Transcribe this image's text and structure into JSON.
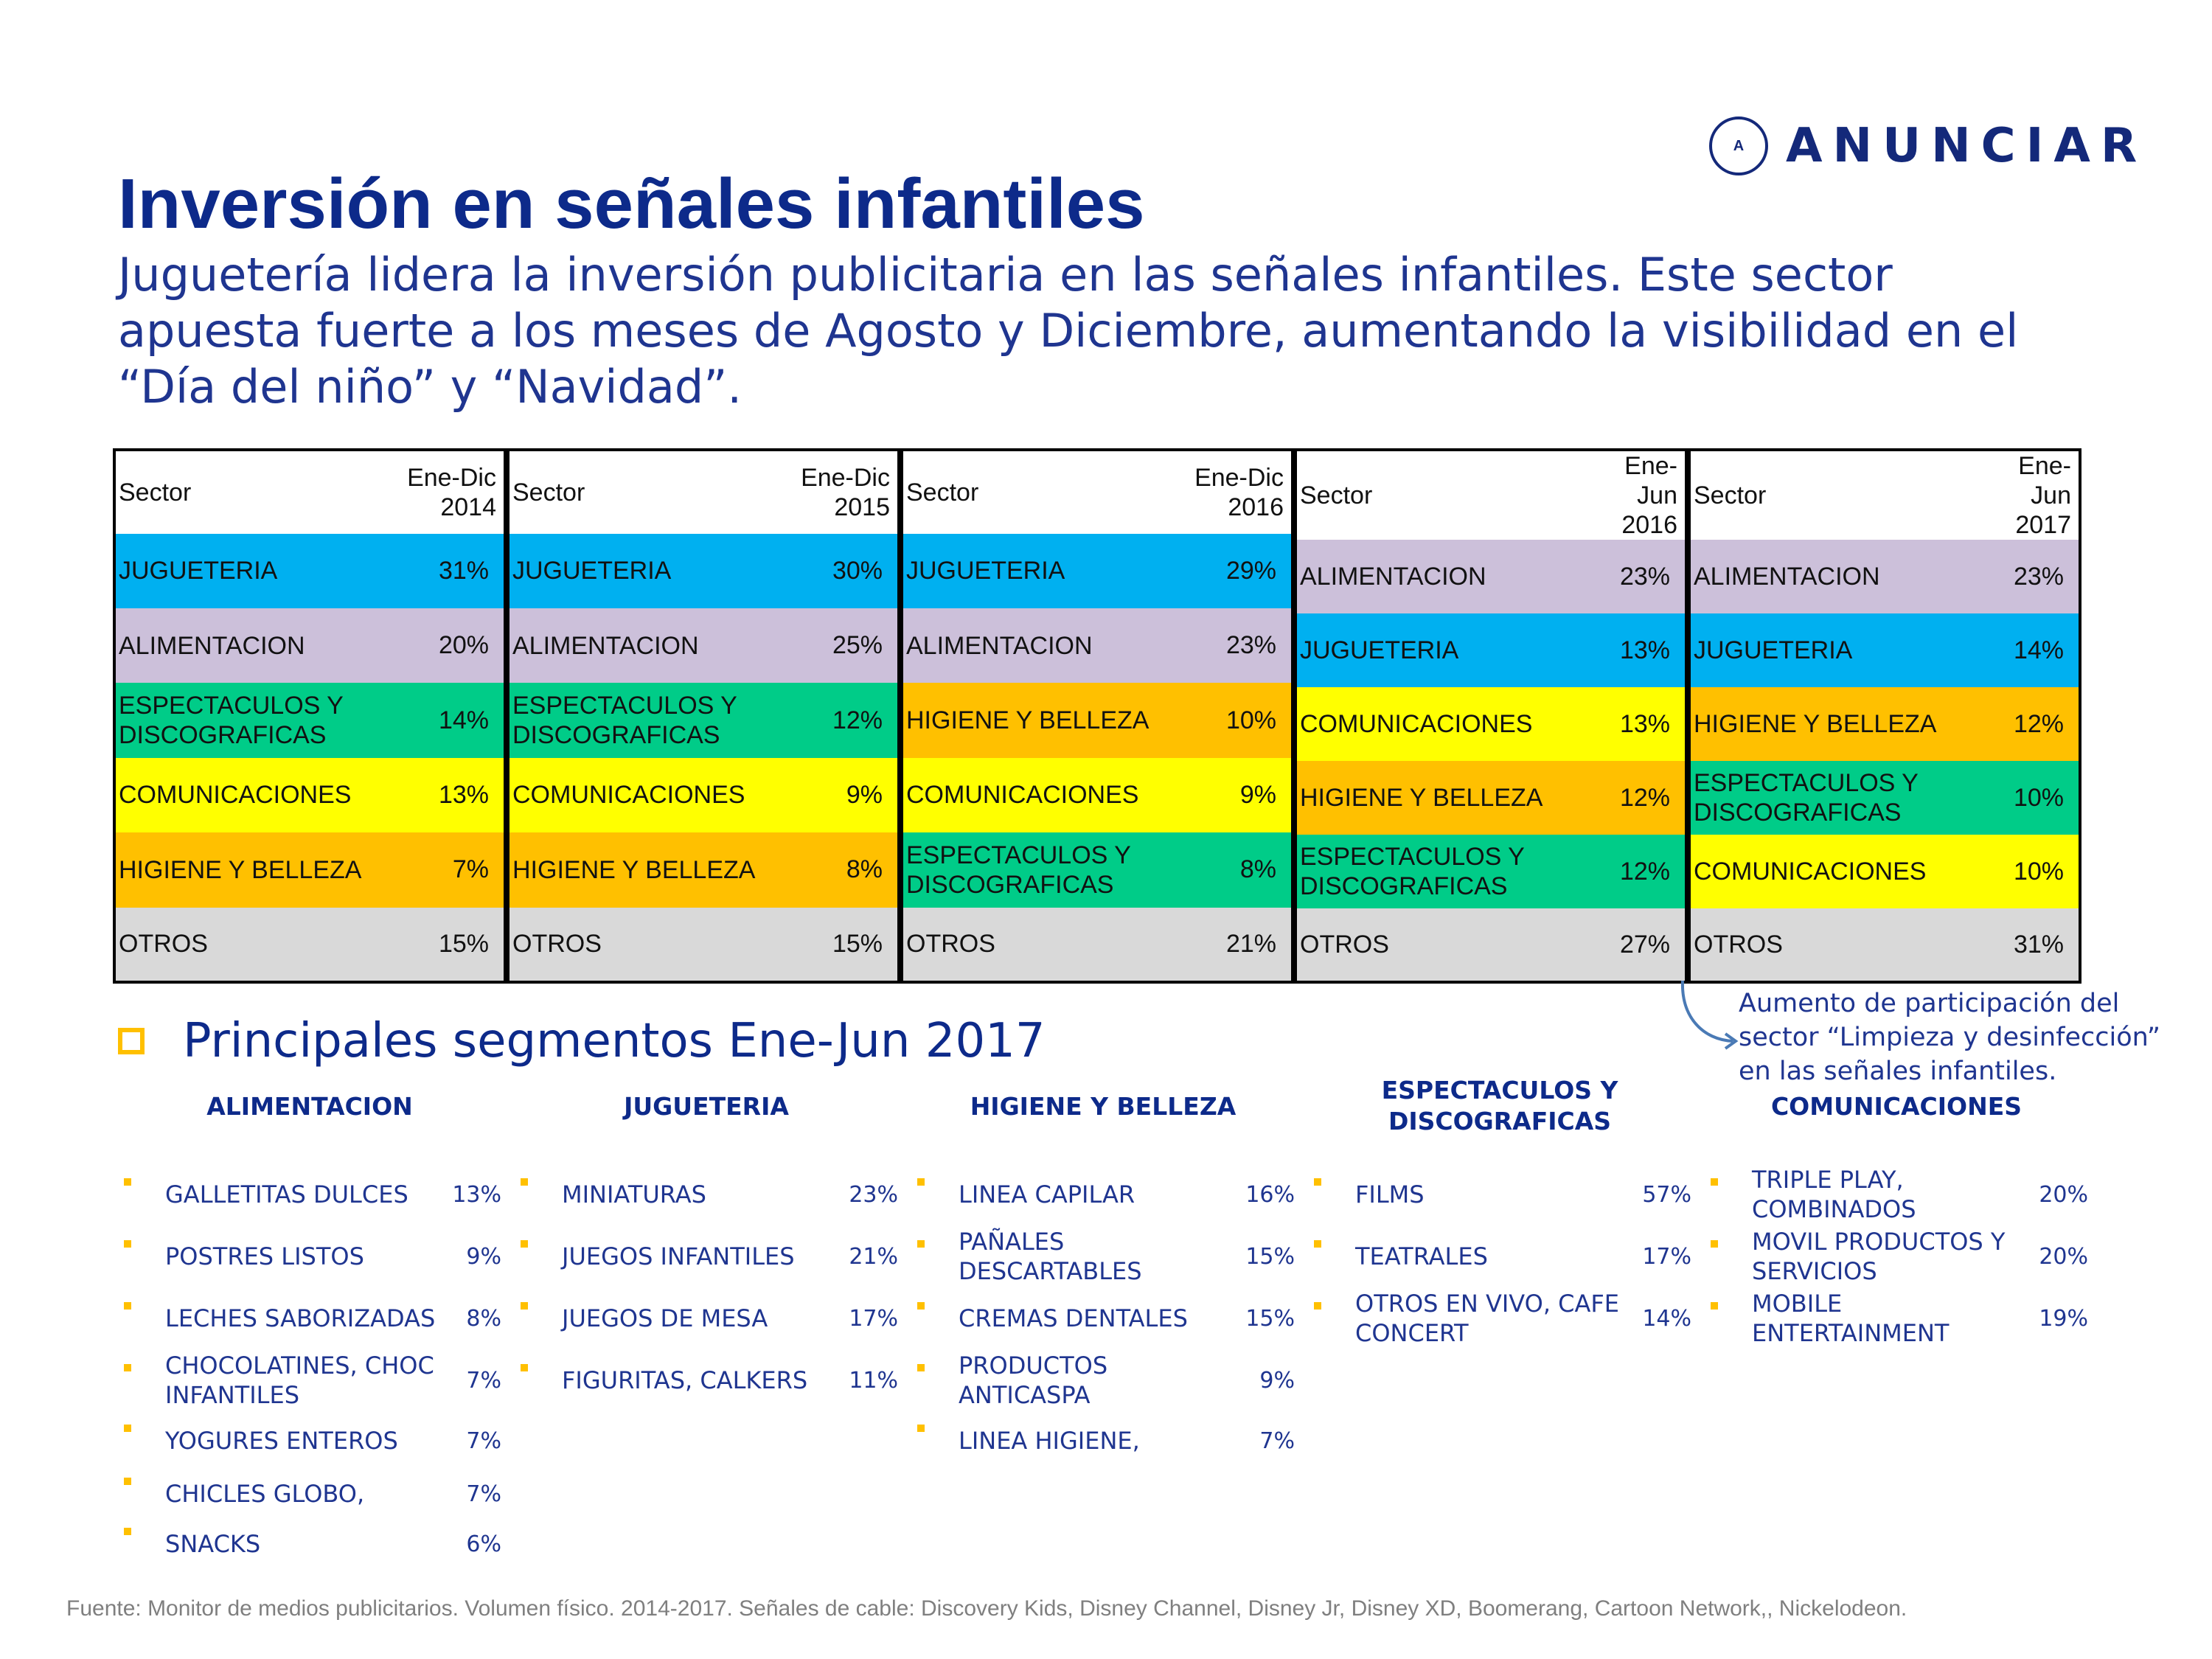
{
  "logo": {
    "mark": "A",
    "text": "ANUNCIAR"
  },
  "title": "Inversión en señales infantiles",
  "subtitle": "Juguetería lidera la inversión publicitaria en las señales infantiles.  Este sector apuesta fuerte a los meses de Agosto y Diciembre, aumentando la visibilidad en el “Día del niño” y “Navidad”.",
  "colors": {
    "JUGUETERIA": "#00b0f0",
    "ALIMENTACION": "#ccc0da",
    "ESPECTACULOS": "#00cc88",
    "COMUNICACIONES": "#ffff00",
    "HIGIENE": "#ffc000",
    "OTROS": "#d9d9d9"
  },
  "tables": [
    {
      "sector_header": "Sector",
      "period_line1": "Ene-Dic",
      "period_line2": "2014",
      "rows": [
        {
          "name": "JUGUETERIA",
          "value": "31%"
        },
        {
          "name": "ALIMENTACION",
          "value": "20%"
        },
        {
          "name": "ESPECTACULOS Y DISCOGRAFICAS",
          "value": "14%"
        },
        {
          "name": "COMUNICACIONES",
          "value": "13%"
        },
        {
          "name": "HIGIENE Y BELLEZA",
          "value": "7%"
        },
        {
          "name": "OTROS",
          "value": "15%"
        }
      ]
    },
    {
      "sector_header": "Sector",
      "period_line1": "Ene-Dic",
      "period_line2": "2015",
      "rows": [
        {
          "name": "JUGUETERIA",
          "value": "30%"
        },
        {
          "name": "ALIMENTACION",
          "value": "25%"
        },
        {
          "name": "ESPECTACULOS Y DISCOGRAFICAS",
          "value": "12%"
        },
        {
          "name": "COMUNICACIONES",
          "value": "9%"
        },
        {
          "name": "HIGIENE Y BELLEZA",
          "value": "8%"
        },
        {
          "name": "OTROS",
          "value": "15%"
        }
      ]
    },
    {
      "sector_header": "Sector",
      "period_line1": "Ene-Dic",
      "period_line2": "2016",
      "rows": [
        {
          "name": "JUGUETERIA",
          "value": "29%"
        },
        {
          "name": "ALIMENTACION",
          "value": "23%"
        },
        {
          "name": "HIGIENE Y BELLEZA",
          "value": "10%"
        },
        {
          "name": "COMUNICACIONES",
          "value": "9%"
        },
        {
          "name": "ESPECTACULOS Y DISCOGRAFICAS",
          "value": "8%"
        },
        {
          "name": "OTROS",
          "value": "21%"
        }
      ]
    },
    {
      "sector_header": "Sector",
      "period_line1": "Ene- Jun",
      "period_line2": "2016",
      "rows": [
        {
          "name": "ALIMENTACION",
          "value": "23%"
        },
        {
          "name": "JUGUETERIA",
          "value": "13%"
        },
        {
          "name": "COMUNICACIONES",
          "value": "13%"
        },
        {
          "name": "HIGIENE Y BELLEZA",
          "value": "12%"
        },
        {
          "name": "ESPECTACULOS Y DISCOGRAFICAS",
          "value": "12%"
        },
        {
          "name": "OTROS",
          "value": "27%"
        }
      ]
    },
    {
      "sector_header": "Sector",
      "period_line1": "Ene- Jun",
      "period_line2": "2017",
      "rows": [
        {
          "name": "ALIMENTACION",
          "value": "23%"
        },
        {
          "name": "JUGUETERIA",
          "value": "14%"
        },
        {
          "name": "HIGIENE Y BELLEZA",
          "value": "12%"
        },
        {
          "name": "ESPECTACULOS Y DISCOGRAFICAS",
          "value": "10%"
        },
        {
          "name": "COMUNICACIONES",
          "value": "10%"
        },
        {
          "name": "OTROS",
          "value": "31%"
        }
      ]
    }
  ],
  "note": "Aumento de participación del sector “Limpieza y desinfección” en las señales infantiles.",
  "segments_title": "Principales segmentos Ene-Jun 2017",
  "segments": [
    {
      "title": "ALIMENTACION",
      "items": [
        {
          "label": "GALLETITAS DULCES",
          "pct": "13%"
        },
        {
          "label": "POSTRES LISTOS",
          "pct": "9%"
        },
        {
          "label": "LECHES SABORIZADAS",
          "pct": "8%"
        },
        {
          "label": "CHOCOLATINES, CHOC INFANTILES",
          "pct": "7%"
        },
        {
          "label": "YOGURES ENTEROS",
          "pct": "7%"
        },
        {
          "label": "CHICLES GLOBO,",
          "pct": "7%"
        },
        {
          "label": "SNACKS",
          "pct": "6%"
        }
      ]
    },
    {
      "title": "JUGUETERIA",
      "items": [
        {
          "label": "MINIATURAS",
          "pct": "23%"
        },
        {
          "label": "JUEGOS INFANTILES",
          "pct": "21%"
        },
        {
          "label": "JUEGOS DE MESA",
          "pct": "17%"
        },
        {
          "label": "FIGURITAS, CALKERS",
          "pct": "11%"
        }
      ]
    },
    {
      "title": "HIGIENE Y BELLEZA",
      "items": [
        {
          "label": "LINEA CAPILAR",
          "pct": "16%"
        },
        {
          "label": "PAÑALES DESCARTABLES",
          "pct": "15%"
        },
        {
          "label": "CREMAS DENTALES",
          "pct": "15%"
        },
        {
          "label": "PRODUCTOS ANTICASPA",
          "pct": "9%"
        },
        {
          "label": "LINEA HIGIENE,",
          "pct": "7%"
        }
      ]
    },
    {
      "title": "ESPECTACULOS Y DISCOGRAFICAS",
      "items": [
        {
          "label": "FILMS",
          "pct": "57%"
        },
        {
          "label": "TEATRALES",
          "pct": "17%"
        },
        {
          "label": "OTROS EN VIVO, CAFE CONCERT",
          "pct": "14%"
        }
      ]
    },
    {
      "title": "COMUNICACIONES",
      "items": [
        {
          "label": "TRIPLE PLAY, COMBINADOS",
          "pct": "20%"
        },
        {
          "label": "MOVIL PRODUCTOS Y SERVICIOS",
          "pct": "20%"
        },
        {
          "label": "MOBILE ENTERTAINMENT",
          "pct": "19%"
        }
      ]
    }
  ],
  "source": "Fuente: Monitor de medios publicitarios. Volumen físico. 2014-2017. Señales de cable: Discovery Kids, Disney Channel, Disney Jr, Disney XD, Boomerang, Cartoon Network,, Nickelodeon."
}
